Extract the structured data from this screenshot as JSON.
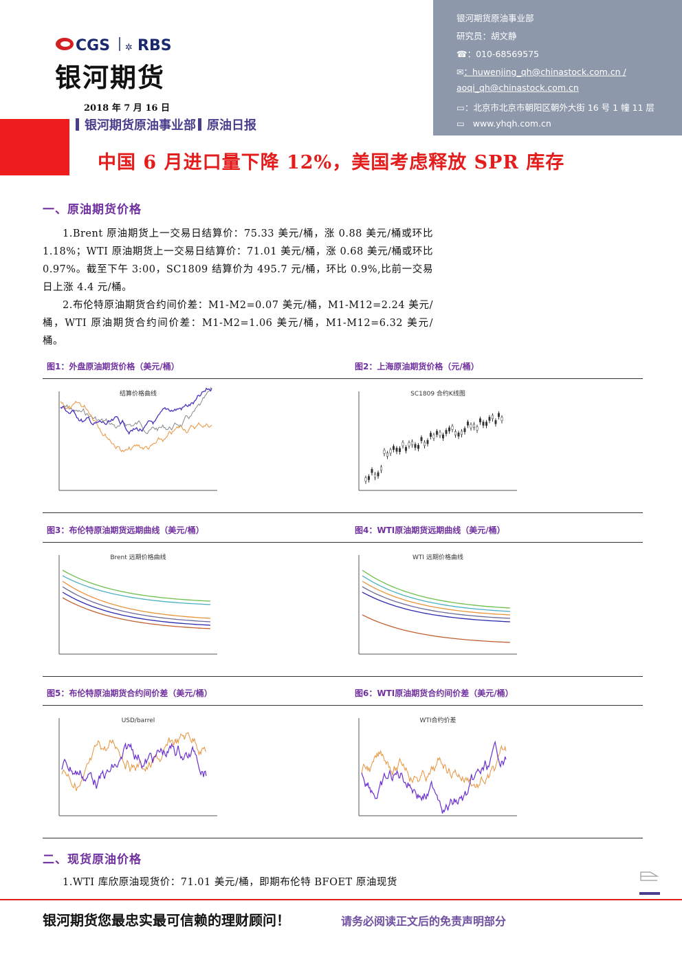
{
  "header": {
    "logo_cgs": "CGS",
    "logo_rbs": "RBS",
    "company": "银河期货",
    "date": "2018 年 7 月 16 日",
    "department": "银河期货原油事业部",
    "report": "原油日报"
  },
  "contact": {
    "department": "银河期货原油事业部",
    "researcher": "研究员：胡文静",
    "phone": "：010-68569575",
    "email_1": "：huwenjing_qh@chinastock.com.cn /",
    "email_2": "aoqi_qh@chinastock.com.cn",
    "address": "：北京市北京市朝阳区朝外大街 16 号 1 幢 11 层",
    "website": "www.yhqh.com.cn"
  },
  "headline": "中国 6 月进口量下降 12%，美国考虑释放 SPR 库存",
  "section_1": {
    "title": "一、原油期货价格",
    "paragraphs": [
      "1.Brent 原油期货上一交易日结算价：75.33 美元/桶，涨 0.88 美元/桶或环比 1.18%；WTI 原油期货上一交易日结算价：71.01 美元/桶，涨 0.68 美元/桶或环比 0.97%。截至下午 3:00，SC1809 结算价为 495.7 元/桶，环比 0.9%,比前一交易日上涨 4.4 元/桶。",
      "2.布伦特原油期货合约间价差：M1-M2=0.07 美元/桶，M1-M12=2.24 美元/桶，WTI 原油期货合约间价差：M1-M2=1.06 美元/桶，M1-M12=6.32 美元/桶。"
    ]
  },
  "figures": [
    {
      "caption": "图1：外盘原油期货价格（美元/桶）",
      "inner_title": "结算价格曲线"
    },
    {
      "caption": "图2：上海原油期货价格（元/桶）",
      "inner_title": "SC1809 合约K线图"
    },
    {
      "caption": "图3：布伦特原油期货远期曲线（美元/桶）",
      "inner_title": "Brent 远期价格曲线"
    },
    {
      "caption": "图4：WTI原油期货远期曲线（美元/桶）",
      "inner_title": "WTI 远期价格曲线"
    },
    {
      "caption": "图5：布伦特原油期货合约间价差（美元/桶）",
      "inner_title": "USD/barrel"
    },
    {
      "caption": "图6：WTI原油期货合约间价差（美元/桶）",
      "inner_title": "WTI合约价差"
    }
  ],
  "section_2": {
    "title": "二、现货原油价格",
    "paragraph": "1.WTI 库欣原油现货价：71.01 美元/桶，即期布伦特 BFOET 原油现货"
  },
  "footer": {
    "slogan": "银河期货您最忠实最可信赖的理财顾问！",
    "disclaimer": "请务必阅读正文后的免责声明部分"
  }
}
